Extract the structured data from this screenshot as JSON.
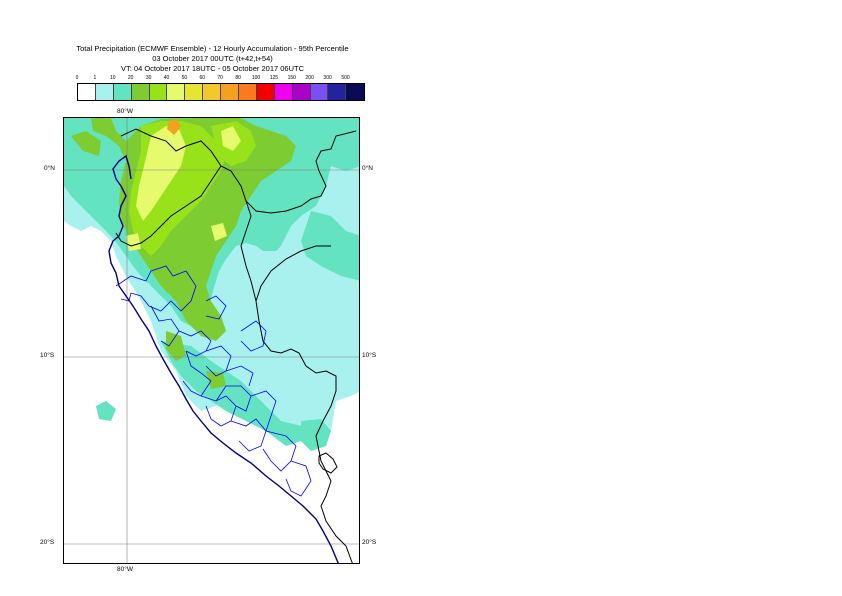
{
  "title": {
    "line1": "Total Precipitation (ECMWF Ensemble) - 12 Hourly Accumulation - 95th Percentile",
    "line2": "03 October 2017 00UTC (t+42,t+54)",
    "line3": "VT: 04 October 2017 18UTC - 05 October 2017 06UTC"
  },
  "legend": {
    "labels": [
      "0",
      "1",
      "10",
      "20",
      "30",
      "40",
      "50",
      "60",
      "70",
      "80",
      "100",
      "125",
      "150",
      "200",
      "300",
      "500"
    ],
    "colors": [
      "#ffffff",
      "#a8f1ee",
      "#63e3c0",
      "#7ccc32",
      "#98e21a",
      "#e6fa6e",
      "#e6e632",
      "#f2c82c",
      "#f5a01e",
      "#fa7a1e",
      "#f50000",
      "#f000f0",
      "#aa00c8",
      "#7a50f0",
      "#2323a0",
      "#0a0a55"
    ]
  },
  "map": {
    "lon_labels": {
      "top": "80°W",
      "bottom": "80°W"
    },
    "lat_labels": [
      "0°N",
      "10°S",
      "20°S"
    ],
    "field_colors": {
      "light": "#a8f1ee",
      "medium": "#63e3c0",
      "green": "#7ccc32",
      "lime": "#98e21a",
      "yellow": "#e6fa6e",
      "orange": "#f5a01e",
      "coast": "#000080",
      "border": "#000000",
      "admin": "#0000ff"
    }
  }
}
